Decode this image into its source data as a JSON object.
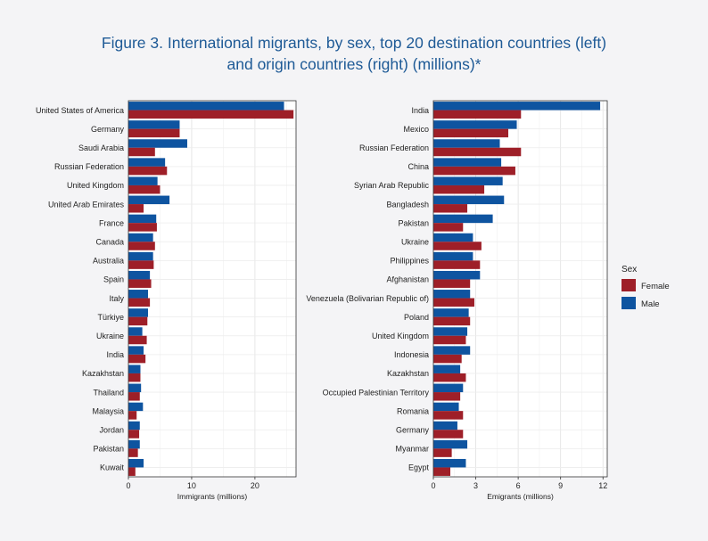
{
  "title_line1": "Figure 3. International migrants, by sex, top 20 destination countries (left)",
  "title_line2": "and origin countries (right) (millions)*",
  "colors": {
    "female": "#9e1f28",
    "male": "#0e54a0",
    "title": "#1e5a96",
    "grid": "#e6e6e6"
  },
  "legend": {
    "title": "Sex",
    "items": [
      "Female",
      "Male"
    ]
  },
  "chart_data": [
    {
      "type": "bar",
      "orientation": "horizontal",
      "xlabel": "Immigrants (millions)",
      "xlim": [
        0,
        26.5
      ],
      "xticks": [
        0,
        10,
        20
      ],
      "categories": [
        "United States of America",
        "Germany",
        "Saudi Arabia",
        "Russian Federation",
        "United Kingdom",
        "United Arab Emirates",
        "France",
        "Canada",
        "Australia",
        "Spain",
        "Italy",
        "Türkiye",
        "Ukraine",
        "India",
        "Kazakhstan",
        "Thailand",
        "Malaysia",
        "Jordan",
        "Pakistan",
        "Kuwait"
      ],
      "series": [
        {
          "name": "Male",
          "values": [
            24.6,
            8.1,
            9.3,
            5.8,
            4.6,
            6.5,
            4.4,
            3.9,
            3.9,
            3.4,
            3.1,
            3.1,
            2.2,
            2.4,
            1.9,
            2.0,
            2.3,
            1.8,
            1.8,
            2.4
          ]
        },
        {
          "name": "Female",
          "values": [
            26.1,
            8.1,
            4.2,
            6.1,
            5.0,
            2.4,
            4.5,
            4.2,
            4.0,
            3.6,
            3.4,
            3.0,
            2.9,
            2.7,
            1.9,
            1.8,
            1.3,
            1.7,
            1.5,
            1.1
          ]
        }
      ]
    },
    {
      "type": "bar",
      "orientation": "horizontal",
      "xlabel": "Emigrants (millions)",
      "xlim": [
        0,
        12.3
      ],
      "xticks": [
        0,
        3,
        6,
        9,
        12
      ],
      "categories": [
        "India",
        "Mexico",
        "Russian Federation",
        "China",
        "Syrian Arab Republic",
        "Bangladesh",
        "Pakistan",
        "Ukraine",
        "Philippines",
        "Afghanistan",
        "Venezuela (Bolivarian Republic of)",
        "Poland",
        "United Kingdom",
        "Indonesia",
        "Kazakhstan",
        "Occupied Palestinian Territory",
        "Romania",
        "Germany",
        "Myanmar",
        "Egypt"
      ],
      "series": [
        {
          "name": "Male",
          "values": [
            11.8,
            5.9,
            4.7,
            4.8,
            4.9,
            5.0,
            4.2,
            2.8,
            2.8,
            3.3,
            2.6,
            2.5,
            2.4,
            2.6,
            1.9,
            2.1,
            1.8,
            1.7,
            2.4,
            2.3
          ]
        },
        {
          "name": "Female",
          "values": [
            6.2,
            5.3,
            6.2,
            5.8,
            3.6,
            2.4,
            2.1,
            3.4,
            3.3,
            2.6,
            2.9,
            2.6,
            2.3,
            2.0,
            2.3,
            1.9,
            2.1,
            2.1,
            1.3,
            1.2
          ]
        }
      ]
    }
  ]
}
